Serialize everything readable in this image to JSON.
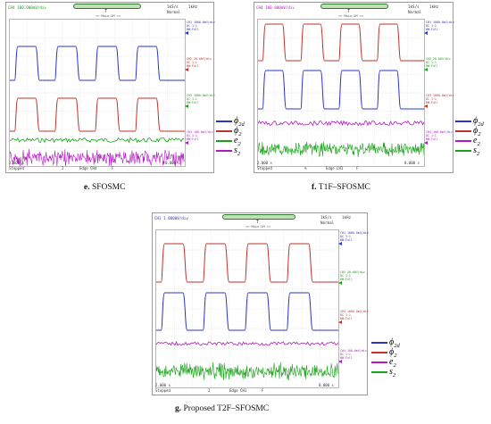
{
  "chart_data": [
    {
      "type": "line",
      "panel": "e",
      "caption_letter": "e.",
      "caption_text": "SFOSMC",
      "scope": {
        "channel": "CH4",
        "rate": "100.000mV/div",
        "sample_rate": "1kS/s",
        "mode": "Normal",
        "time_div": "1kHz",
        "heading": "<< Main:1M >>",
        "footer": {
          "status": "Stopped",
          "mid": "2",
          "edge": "Edge CH4",
          "slope": "F",
          "left_time": "2.000 s",
          "right_time": "8.000 s"
        }
      },
      "channel_labels": [
        {
          "lines": [
            "CH1 1000.0mV/div",
            "DC 1:1",
            "BW:Full"
          ],
          "color": "#2c33c8"
        },
        {
          "lines": [
            "CH2 20.00V/div",
            "DC 1:1",
            "BW:Full"
          ],
          "color": "#c2322b"
        },
        {
          "lines": [
            "CH3 1000.0mV/div",
            "DC 1:1",
            "BW:Full"
          ],
          "color": "#1aa11a"
        },
        {
          "lines": [
            "CH4 100.0mV/div",
            "DC 1:1",
            "BW:Full"
          ],
          "color": "#b21ac0"
        }
      ],
      "series": [
        {
          "name": "ϕ2d",
          "legend_sym": "ϕ",
          "legend_sub": "2d",
          "color": "#2c33c8",
          "shape": "square",
          "periods": 4
        },
        {
          "name": "ϕ2",
          "legend_sym": "ϕ",
          "legend_sub": "2",
          "color": "#c2322b",
          "shape": "square",
          "periods": 4
        },
        {
          "name": "e2",
          "legend_sym": "e",
          "legend_sub": "2",
          "color": "#1aa11a",
          "shape": "small-noise"
        },
        {
          "name": "s2",
          "legend_sym": "s",
          "legend_sub": "2",
          "color": "#b21ac0",
          "shape": "large-noise"
        }
      ]
    },
    {
      "type": "line",
      "panel": "f",
      "caption_letter": "f.",
      "caption_text": "T1F–SFOSMC",
      "scope": {
        "channel": "CH4",
        "rate": "100.000mV/div",
        "sample_rate": "1kS/s",
        "mode": "Normal",
        "time_div": "1kHz",
        "heading": "<< Main:1M >>",
        "footer": {
          "status": "Stopped",
          "mid": "%",
          "edge": "Edge CH1",
          "slope": "F",
          "left_time": "2.000 s",
          "right_time": "8.000 s"
        }
      },
      "channel_labels": [
        {
          "lines": [
            "CH1 1000.0mV/div",
            "DC 1:1",
            "BW:Full"
          ],
          "color": "#2c33c8"
        },
        {
          "lines": [
            "CH2 20.00V/div",
            "DC 1:1",
            "BW:Full"
          ],
          "color": "#1aa11a"
        },
        {
          "lines": [
            "CH3 1000.0mV/div",
            "DC 1:1",
            "BW:Full"
          ],
          "color": "#c2322b"
        },
        {
          "lines": [
            "CH4 100.0mV/div",
            "DC 1:1",
            "BW:Full"
          ],
          "color": "#b21ac0"
        }
      ],
      "series": [
        {
          "name": "ϕ2d",
          "legend_sym": "ϕ",
          "legend_sub": "2d",
          "color": "#2c33c8",
          "shape": "square",
          "periods": 4
        },
        {
          "name": "ϕ2",
          "legend_sym": "ϕ",
          "legend_sub": "2",
          "color": "#c2322b",
          "shape": "square",
          "periods": 4
        },
        {
          "name": "e2",
          "legend_sym": "e",
          "legend_sub": "2",
          "color": "#b21ac0",
          "shape": "small-noise"
        },
        {
          "name": "s2",
          "legend_sym": "s",
          "legend_sub": "2",
          "color": "#1aa11a",
          "shape": "large-noise"
        }
      ]
    },
    {
      "type": "line",
      "panel": "g",
      "caption_letter": "g.",
      "caption_text": "Proposed T2F–SFOSMC",
      "scope": {
        "channel": "CH1",
        "rate": "1.0000V/div",
        "sample_rate": "1kS/s",
        "mode": "Normal",
        "time_div": "1kHz",
        "heading": "<< Main:1M >>",
        "footer": {
          "status": "Stopped",
          "mid": "2",
          "edge": "Edge CH1",
          "slope": "F",
          "left_time": "2.000 s",
          "right_time": "8.000 s"
        }
      },
      "channel_labels": [
        {
          "lines": [
            "CH1 1000.0mV/div",
            "DC 1:1",
            "BW:Full"
          ],
          "color": "#2c33c8"
        },
        {
          "lines": [
            "CH2 20.00V/div",
            "DC 1:1",
            "BW:Full"
          ],
          "color": "#1aa11a"
        },
        {
          "lines": [
            "CH3 1000.0mV/div",
            "DC 1:1",
            "BW:Full"
          ],
          "color": "#c2322b"
        },
        {
          "lines": [
            "CH4 100.0mV/div",
            "DC 1:1",
            "BW:Full"
          ],
          "color": "#b21ac0"
        }
      ],
      "series": [
        {
          "name": "ϕ2d",
          "legend_sym": "ϕ",
          "legend_sub": "2d",
          "color": "#2c33c8",
          "shape": "square",
          "periods": 4
        },
        {
          "name": "ϕ2",
          "legend_sym": "ϕ",
          "legend_sub": "2",
          "color": "#c2322b",
          "shape": "square",
          "periods": 4
        },
        {
          "name": "e2",
          "legend_sym": "e",
          "legend_sub": "2",
          "color": "#b21ac0",
          "shape": "small-noise"
        },
        {
          "name": "s2",
          "legend_sym": "s",
          "legend_sub": "2",
          "color": "#1aa11a",
          "shape": "large-noise"
        }
      ]
    }
  ]
}
